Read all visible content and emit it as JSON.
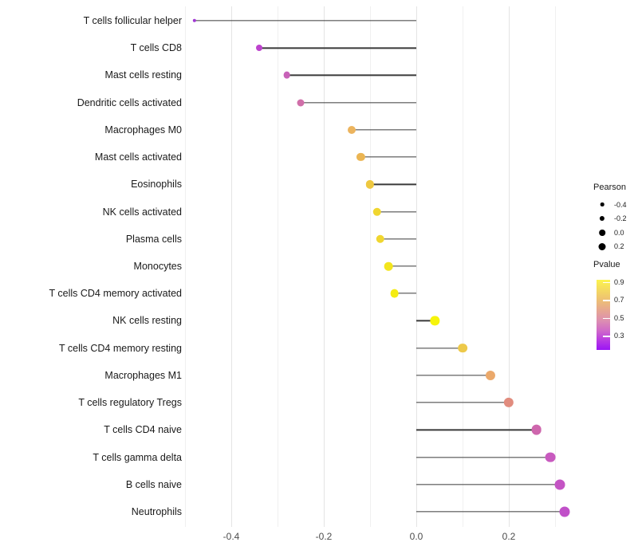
{
  "chart_data": {
    "type": "lollipop",
    "title": "",
    "xlabel": "",
    "ylabel": "",
    "xlim": [
      -0.55,
      0.37
    ],
    "baseline": 0.0,
    "grid": "vertical-only",
    "gridline_values": [
      -0.5,
      -0.4,
      -0.3,
      -0.2,
      -0.1,
      0.0,
      0.1,
      0.2,
      0.3
    ],
    "x_ticks": [
      {
        "value": -0.4,
        "label": "-0.4"
      },
      {
        "value": -0.2,
        "label": "-0.2"
      },
      {
        "value": 0.0,
        "label": "0.0"
      },
      {
        "value": 0.2,
        "label": "0.2"
      }
    ],
    "points": [
      {
        "label": "T cells follicular helper",
        "pearson": -0.48,
        "color": "#a138d4"
      },
      {
        "label": "T cells CD8",
        "pearson": -0.34,
        "color": "#bd43cd"
      },
      {
        "label": "Mast cells resting",
        "pearson": -0.28,
        "color": "#c862b8"
      },
      {
        "label": "Dendritic cells activated",
        "pearson": -0.25,
        "color": "#d06fa9"
      },
      {
        "label": "Macrophages M0",
        "pearson": -0.14,
        "color": "#ecb45e"
      },
      {
        "label": "Mast cells activated",
        "pearson": -0.12,
        "color": "#ebb553"
      },
      {
        "label": "Eosinophils",
        "pearson": -0.1,
        "color": "#eec840"
      },
      {
        "label": "NK cells activated",
        "pearson": -0.085,
        "color": "#f0d630"
      },
      {
        "label": "Plasma cells",
        "pearson": -0.078,
        "color": "#f0d630"
      },
      {
        "label": "Monocytes",
        "pearson": -0.06,
        "color": "#f3e51d"
      },
      {
        "label": "T cells CD4 memory activated",
        "pearson": -0.047,
        "color": "#f4ec12"
      },
      {
        "label": "NK cells resting",
        "pearson": 0.04,
        "color": "#f6f40b"
      },
      {
        "label": "T cells CD4 memory resting",
        "pearson": 0.1,
        "color": "#edc94a"
      },
      {
        "label": "Macrophages M1",
        "pearson": 0.16,
        "color": "#eba96b"
      },
      {
        "label": "T cells regulatory  Tregs",
        "pearson": 0.2,
        "color": "#e18c7e"
      },
      {
        "label": "T cells CD4 naive",
        "pearson": 0.26,
        "color": "#ce66ad"
      },
      {
        "label": "T cells gamma delta",
        "pearson": 0.29,
        "color": "#c85abf"
      },
      {
        "label": "B cells naive",
        "pearson": 0.31,
        "color": "#c454c4"
      },
      {
        "label": "Neutrophils",
        "pearson": 0.32,
        "color": "#c050c8"
      }
    ]
  },
  "legend": {
    "size_legend": {
      "title": "Pearson",
      "entries": [
        {
          "label": "-0.4",
          "radius": 2.3
        },
        {
          "label": "-0.2",
          "radius": 3.1
        },
        {
          "label": "0.0",
          "radius": 3.8
        },
        {
          "label": "0.2",
          "radius": 4.5
        }
      ]
    },
    "color_legend": {
      "title": "Pvalue",
      "tick_labels": [
        "0.9",
        "0.7",
        "0.5",
        "0.3"
      ],
      "gradient_top_color": "#fcf44e",
      "gradient_bottom_color": "#9a15f5"
    }
  },
  "style": {
    "background": "#ffffff",
    "segment_color": "#3a3a3a",
    "axis_text_color": "#4d4d4d",
    "label_text_color": "#1a1a1a"
  }
}
